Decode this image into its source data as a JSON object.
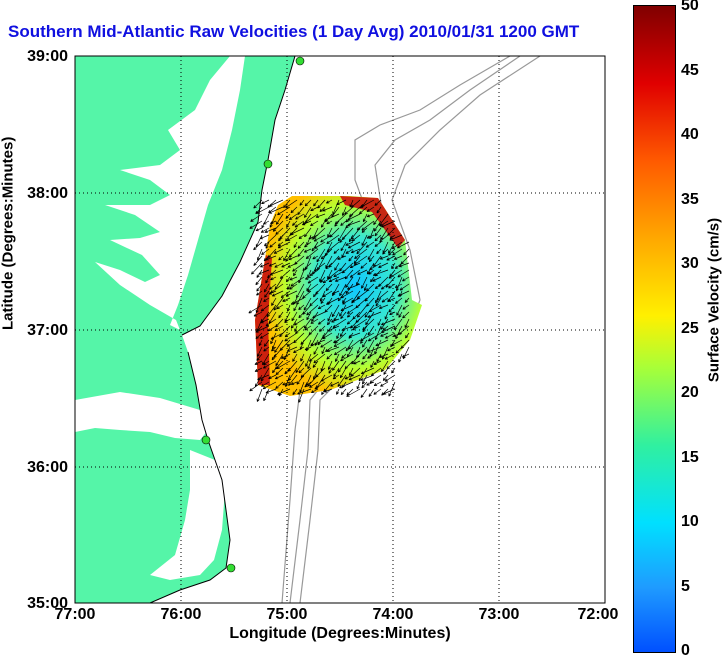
{
  "map": {
    "title": "Southern Mid-Atlantic Raw Velocities (1 Day Avg) 2010/01/31 1200 GMT",
    "xlabel": "Longitude (Degrees:Minutes)",
    "ylabel": "Latitude (Degrees:Minutes)",
    "xticks": [
      "77:00",
      "76:00",
      "75:00",
      "74:00",
      "73:00",
      "72:00"
    ],
    "yticks": [
      "39:00",
      "38:00",
      "37:00",
      "36:00",
      "35:00"
    ],
    "colors": {
      "land": "#55f5a8",
      "title": "#1010e0",
      "bathymetry": "#999999",
      "arrows": "#000000",
      "stations": "#33dd33"
    }
  },
  "colorbar": {
    "label": "Surface Velocity (cm/s)",
    "ticks": [
      "50",
      "45",
      "40",
      "35",
      "30",
      "25",
      "20",
      "15",
      "10",
      "5",
      "0"
    ],
    "range": [
      0,
      50
    ]
  }
}
